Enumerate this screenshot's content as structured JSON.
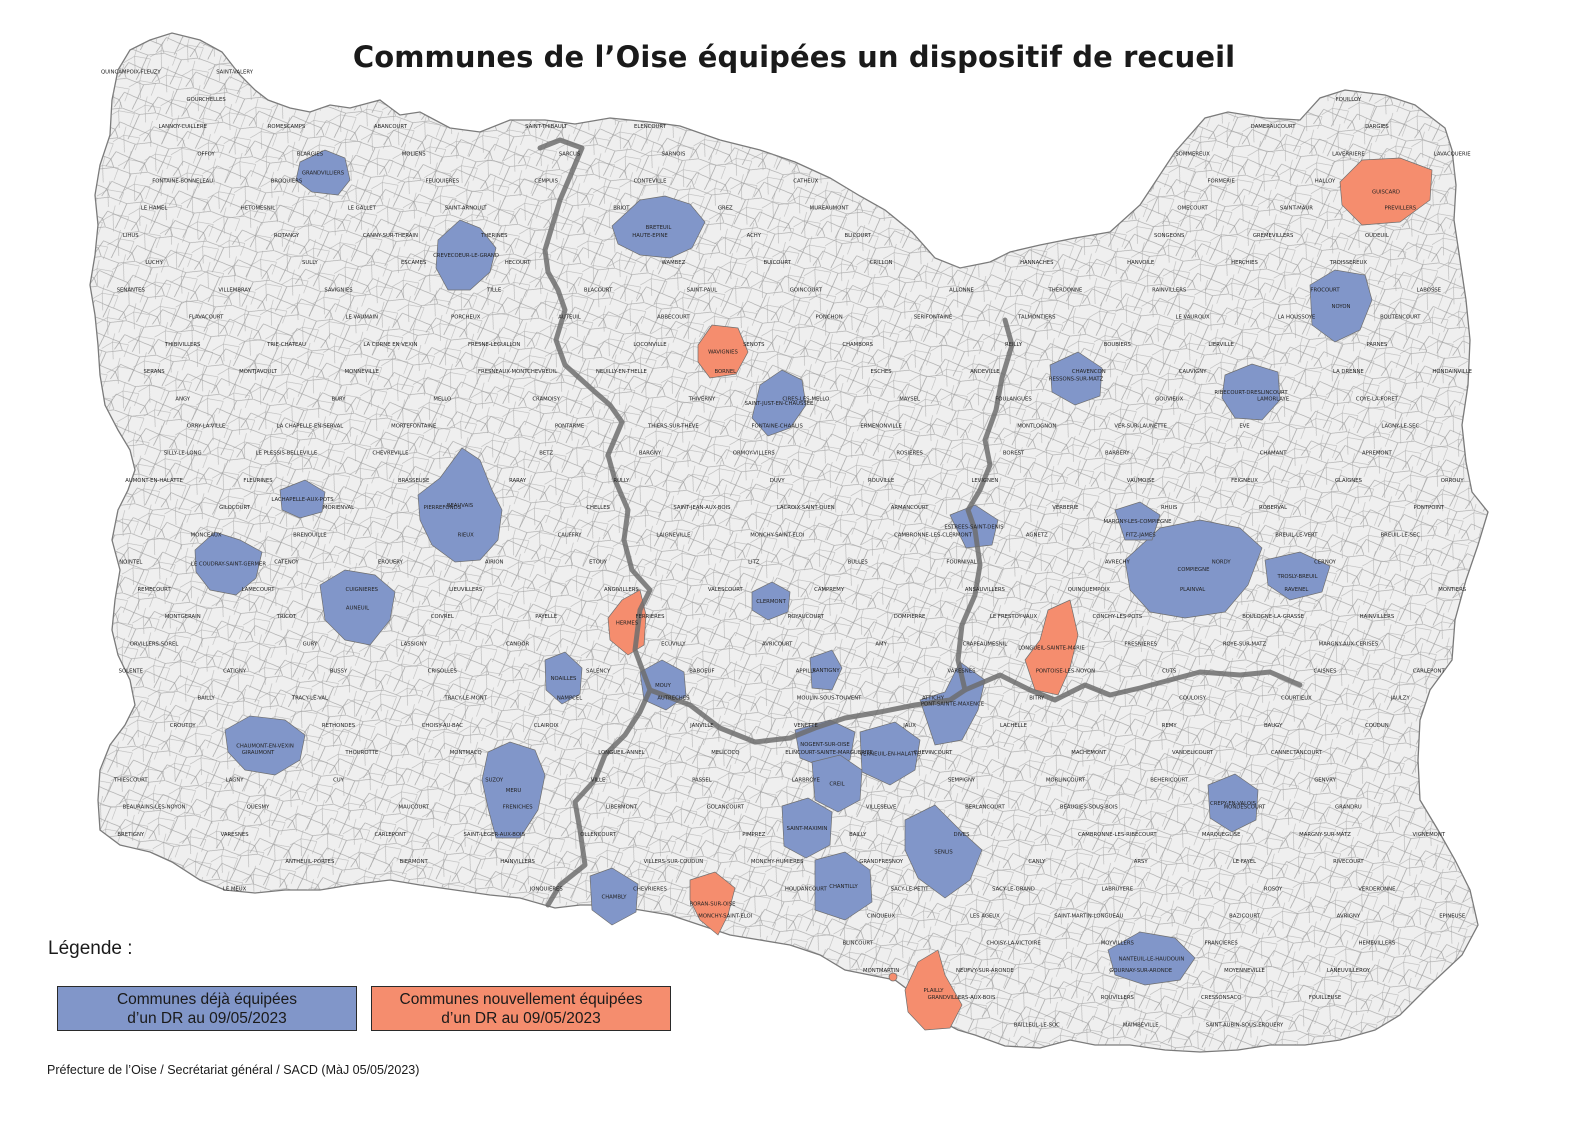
{
  "title": "Communes de l’Oise équipées un dispositif de recueil",
  "legend": {
    "heading": "Légende :",
    "existing": {
      "label": "Communes déjà équipées\nd’un DR au 09/05/2023",
      "color": "#8196c9"
    },
    "new": {
      "label": "Communes nouvellement équipées\nd’un DR au 09/05/2023",
      "color": "#f58d6e"
    }
  },
  "footer": "Préfecture de l’Oise / Secrétariat général / SACD (MàJ 05/05/2023)",
  "colors": {
    "commune_fill": "#efefef",
    "commune_border": "#8a8a8a",
    "arrondissement_border": "#6e6e6e"
  },
  "communes_existing": [
    "GRANDVILLIERS",
    "CREVECOEUR-LE-GRAND",
    "BRETEUIL",
    "BEAUVAIS",
    "LACHAPELLE-AUX-POTS",
    "LE COUDRAY-SAINT-GERMER",
    "AUNEUIL",
    "CHAUMONT-EN-VEXIN",
    "NOAILLES",
    "MOUY",
    "MERU",
    "CLERMONT",
    "SAINT-JUST-EN-CHAUSSEE",
    "NOGENT-SUR-OISE",
    "CREIL",
    "VERNEUIL-EN-HALATTE",
    "SAINT-MAXIMIN",
    "CHANTILLY",
    "SENLIS",
    "CHAMBLY",
    "PONT-SAINTE-MAXENCE",
    "ESTREES-SAINT-DENIS",
    "RESSONS-SUR-MATZ",
    "COMPIEGNE",
    "MARGNY-LES-COMPIEGNE",
    "TROSLY-BREUIL",
    "NOYON",
    "RIBECOURT-DRESLINCOURT",
    "CREPY-EN-VALOIS",
    "NANTEUIL-LE-HAUDOUIN",
    "RANTIGNY"
  ],
  "communes_new": [
    "GUISCARD",
    "WAVIGNIES",
    "HERMES",
    "LONGUEIL-SAINTE-MARIE",
    "BORAN-SUR-OISE",
    "PLAILLY"
  ],
  "commune_labels": [
    "QUINCAMPOIX-FLEUZY",
    "SAINT-VALERY",
    "GOURCHELLES",
    "FOUILLOY",
    "LANNOY-CUILLERE",
    "ROMESCAMPS",
    "ABANCOURT",
    "SAINT-THIBAULT",
    "ELENCOURT",
    "DAMERAUCOURT",
    "DARGIES",
    "OFFOY",
    "BLARGIES",
    "MOLIENS",
    "SARCUS",
    "SARNOIS",
    "SOMMEREUX",
    "LAVERRIERE",
    "LAVACQUERIE",
    "FONTAINE-BONNELEAU",
    "BROQUIERS",
    "FEUQUIERES",
    "CEMPUIS",
    "CONTEVILLE",
    "CATHEUX",
    "FORMERIE",
    "HALLOY",
    "LE HAMEL",
    "HETOMESNIL",
    "LE GALLET",
    "SAINT-ARNOULT",
    "BRIOT",
    "GREZ",
    "MUREAUMONT",
    "OMECOURT",
    "SAINT-MAUR",
    "PREVILLERS",
    "LIHUS",
    "ROTANGY",
    "CANNY-SUR-THERAIN",
    "THERINES",
    "HAUTE-EPINE",
    "ACHY",
    "BLICOURT",
    "SONGEONS",
    "GREMEVILLERS",
    "OUDEUIL",
    "LUCHY",
    "SULLY",
    "ESCAMES",
    "HECOURT",
    "WAMBEZ",
    "BUICOURT",
    "CRILLON",
    "HANNACHES",
    "HANVOILE",
    "HERCHIES",
    "TROISSEREUX",
    "SENANTES",
    "VILLEMBRAY",
    "SAVIGNIES",
    "TILLE",
    "BLACOURT",
    "SAINT-PAUL",
    "GOINCOURT",
    "ALLONNE",
    "THERDONNE",
    "RAINVILLERS",
    "FROCOURT",
    "LABOSSE",
    "FLAVACOURT",
    "LE VAUMAIN",
    "PORCHEUX",
    "AUTEUIL",
    "ABBECOURT",
    "PONCHON",
    "SERIFONTAINE",
    "TALMONTIERS",
    "LE VAUROUX",
    "LA HOUSSOYE",
    "BOUTENCOURT",
    "THIBIVILLERS",
    "TRIE-CHATEAU",
    "LA CORNE EN VEXIN",
    "FRESNE-LEGUILLON",
    "LOCONVILLE",
    "SENOTS",
    "CHAMBORS",
    "REILLY",
    "BOUBIERS",
    "LIERVILLE",
    "PARNES",
    "SERANS",
    "MONTJAVOULT",
    "MONNEVILLE",
    "FRESNEAUX-MONTCHEVREUIL",
    "NEUILLY-EN-THELLE",
    "BORNEL",
    "ESCHES",
    "ANDEVILLE",
    "CHAVENCON",
    "CAUVIGNY",
    "LA DRENNE",
    "HONDAINVILLE",
    "ANGY",
    "BURY",
    "MELLO",
    "CRAMOISY",
    "THIVERNY",
    "CIRES-LES-MELLO",
    "MAYSEL",
    "FOULANGUES",
    "GOUVIEUX",
    "LAMORLAYE",
    "COYE-LA-FORET",
    "ORRY-LA-VILLE",
    "LA CHAPELLE-EN-SERVAL",
    "MORTEFONTAINE",
    "PONTARME",
    "THIERS-SUR-THEVE",
    "FONTAINE-CHAALIS",
    "ERMENONVILLE",
    "MONTLOGNON",
    "VER-SUR-LAUNETTE",
    "EVE",
    "LAGNY-LE-SEC",
    "SILLY-LE-LONG",
    "LE PLESSIS-BELLEVILLE",
    "CHEVREVILLE",
    "BETZ",
    "BARGNY",
    "ORMOY-VILLERS",
    "ROSIERES",
    "BOREST",
    "BARBERY",
    "CHAMANT",
    "APREMONT",
    "AUMONT-EN-HALATTE",
    "FLEURINES",
    "BRASSEUSE",
    "RARAY",
    "RULLY",
    "DUVY",
    "ROUVILLE",
    "LEVIGNEN",
    "VAUMOISE",
    "FEIGNEUX",
    "GLAIGNES",
    "ORROUY",
    "GILOCOURT",
    "MORIENVAL",
    "PIERREFONDS",
    "CHELLES",
    "SAINT-JEAN-AUX-BOIS",
    "LACROIX-SAINT-OUEN",
    "ARMANCOURT",
    "VERBERIE",
    "RHUIS",
    "ROBERVAL",
    "PONTPOINT",
    "MONCEAUX",
    "BRENOUILLE",
    "RIEUX",
    "CAUFFRY",
    "LAIGNEVILLE",
    "MONCHY-SAINT-ELOI",
    "CAMBRONNE-LES-CLERMONT",
    "AGNETZ",
    "FITZ-JAMES",
    "BREUIL-LE-VERT",
    "BREUIL-LE-SEC",
    "NOINTEL",
    "CATENOY",
    "ERQUERY",
    "AIRION",
    "ETOUY",
    "LITZ",
    "BULLES",
    "FOURNIVAL",
    "AVRECHY",
    "NORDY",
    "CERNOY",
    "REMECOURT",
    "LAMECOURT",
    "CUIGNIERES",
    "LIEUVILLERS",
    "ANGIVILLERS",
    "VALESCOURT",
    "WAVIGNIES",
    "CAMPREMY",
    "ANSAUVILLERS",
    "QUINQUEMPOIX",
    "PLAINVAL",
    "RAVENEL",
    "MONTIERS",
    "MONTGERAIN",
    "TRICOT",
    "COIVREL",
    "PAYELLE",
    "FERRIERES",
    "ROYAUCOURT",
    "DOMPIERRE",
    "LE FRESTOY-VAUX",
    "CONCHY-LES-POTS",
    "BOULOGNE-LA-GRASSE",
    "HAINVILLERS",
    "ORVILLERS-SOREL",
    "GURY",
    "LASSIGNY",
    "CANDOR",
    "ECUVILLY",
    "AVRICOURT",
    "AMY",
    "CRAPEAUMESNIL",
    "FRESNIERES",
    "ROYE-SUR-MATZ",
    "MARGNY-AUX-CERISES",
    "SOLENTE",
    "CATIGNY",
    "BUSSY",
    "CRISOLLES",
    "SALENCY",
    "BABOEUF",
    "APPILLY",
    "VARESNES",
    "PONTOISE-LES-NOYON",
    "CUTS",
    "CAISNES",
    "CARLEPONT",
    "BAILLY",
    "TRACY-LE-VAL",
    "TRACY-LE-MONT",
    "NAMPCEL",
    "AUTRECHES",
    "MOULIN-SOUS-TOUVENT",
    "ATTICHY",
    "BITRY",
    "COULOISY",
    "COURTIEUX",
    "JAULZY",
    "CROUTOY",
    "RETHONDES",
    "CHOISY-AU-BAC",
    "CLAIROIX",
    "JANVILLE",
    "VENETTE",
    "JAUX",
    "LACHELLE",
    "REMY",
    "BAUGY",
    "COUDUN",
    "GIRAUMONT",
    "THOUROTTE",
    "MONTMACQ",
    "LONGUEIL-ANNEL",
    "MELICOCQ",
    "ELINCOURT-SAINTE-MARGUERITE",
    "CHEVINCOURT",
    "MACHEMONT",
    "VANDELICOURT",
    "CANNECTANCOURT",
    "THIESCOURT",
    "LAGNY",
    "CUY",
    "SUZOY",
    "VILLE",
    "PASSEL",
    "LARBROYE",
    "SEMPIGNY",
    "MORLINCOURT",
    "BEHERICOURT",
    "GENVRY",
    "BEAURAINS-LES-NOYON",
    "QUESMY",
    "MAUCOURT",
    "FRENICHES",
    "LIBERMONT",
    "GOLANCOURT",
    "VILLESELVE",
    "BERLANCOURT",
    "BEAUGIES-SOUS-BOIS",
    "MONDESCOURT",
    "GRANDRU",
    "BRETIGNY",
    "VARESNES",
    "CARLEPONT",
    "SAINT-LEGER-AUX-BOIS",
    "OLLENCOURT",
    "PIMPREZ",
    "BAILLY",
    "DIVES",
    "CAMBRONNE-LES-RIBECOURT",
    "MARQUEGLISE",
    "MARGNY-SUR-MATZ",
    "VIGNEMONT",
    "ANTHEUIL-PORTES",
    "BIERMONT",
    "HAINVILLERS",
    "VILLERS-SUR-COUDUN",
    "MONCHY-HUMIERES",
    "GRANDFRESNOY",
    "CANLY",
    "ARSY",
    "LE FAYEL",
    "RIVECOURT",
    "LE MEUX",
    "JONQUIERES",
    "CHEVRIERES",
    "HOUDANCOURT",
    "SACY-LE-PETIT",
    "SACY-LE-GRAND",
    "LABRUYERE",
    "ROSOY",
    "VERDERONNE",
    "MONCHY-SAINT-ELOI",
    "CINQUEUX",
    "LES AGEUX",
    "SAINT-MARTIN-LONGUEAU",
    "BAZICOURT",
    "AVRIGNY",
    "EPINEUSE",
    "BLINCOURT",
    "CHOISY-LA-VICTOIRE",
    "MOYVILLERS",
    "FRANCIERES",
    "HEMEVILLERS",
    "MONTMARTIN",
    "NEUFVY-SUR-ARONDE",
    "GOURNAY-SUR-ARONDE",
    "MOYENNEVILLE",
    "LANEUVILLEROY",
    "GRANDVILLERS-AUX-BOIS",
    "ROUVILLERS",
    "CRESSONSACQ",
    "FOUILLEUSE",
    "BAILLEUL-LE-SOC",
    "MAIMBEVILLE",
    "SAINT-AUBIN-SOUS-ERQUERY"
  ]
}
